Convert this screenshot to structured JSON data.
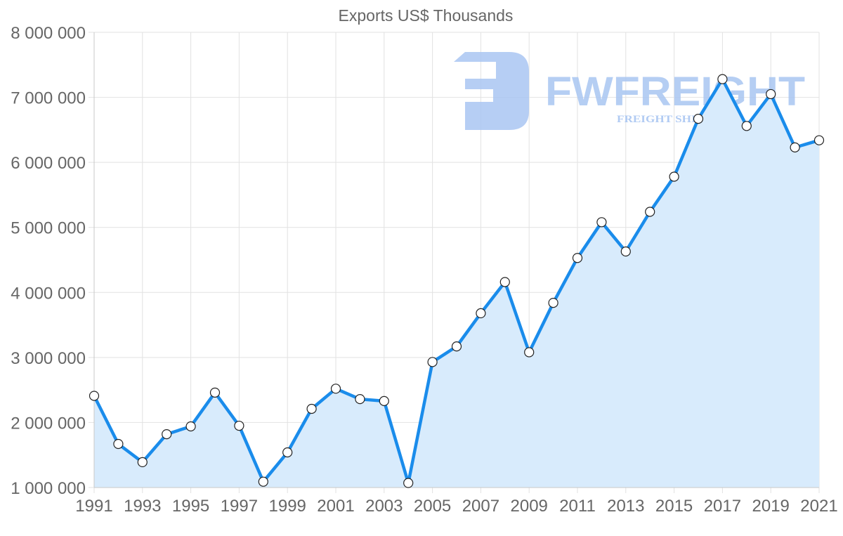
{
  "chart_data": {
    "type": "area",
    "title": "Exports US$ Thousands",
    "xlabel": "",
    "ylabel": "",
    "x": [
      1991,
      1992,
      1993,
      1994,
      1995,
      1996,
      1997,
      1998,
      1999,
      2000,
      2001,
      2002,
      2003,
      2004,
      2005,
      2006,
      2007,
      2008,
      2009,
      2010,
      2011,
      2012,
      2013,
      2014,
      2015,
      2016,
      2017,
      2018,
      2019,
      2020,
      2021
    ],
    "series": [
      {
        "name": "Exports US$ Thousands",
        "values": [
          2410000,
          1670000,
          1390000,
          1820000,
          1940000,
          2460000,
          1950000,
          1090000,
          1540000,
          2210000,
          2520000,
          2360000,
          2330000,
          1070000,
          2930000,
          3170000,
          3680000,
          4160000,
          3080000,
          3840000,
          4530000,
          5080000,
          4630000,
          5240000,
          5780000,
          6670000,
          7280000,
          6560000,
          7050000,
          6230000,
          6340000
        ]
      }
    ],
    "ylim": [
      1000000,
      8000000
    ],
    "xlim": [
      1991,
      2021
    ],
    "x_tick_labels": [
      "1991",
      "1993",
      "1995",
      "1997",
      "1999",
      "2001",
      "2003",
      "2005",
      "2007",
      "2009",
      "2011",
      "2013",
      "2015",
      "2017",
      "2019",
      "2021"
    ],
    "y_tick_labels": [
      "8 000 000",
      "7 000 000",
      "6 000 000",
      "5 000 000",
      "4 000 000",
      "3 000 000",
      "2 000 000",
      "1 000 000"
    ],
    "y_ticks": [
      8000000,
      7000000,
      6000000,
      5000000,
      4000000,
      3000000,
      2000000,
      1000000
    ],
    "grid": true,
    "legend": "none",
    "colors": {
      "line": "#1a8ceb",
      "fill": "#d8ebfc",
      "point_fill": "#ffffff",
      "point_stroke": "#222222",
      "grid": "#e2e2e2",
      "text": "#666666"
    }
  },
  "watermark": {
    "brand": "FWFREIGHT",
    "tagline": "FREIGHT SHIPPING",
    "color": "#a9c6f2"
  }
}
